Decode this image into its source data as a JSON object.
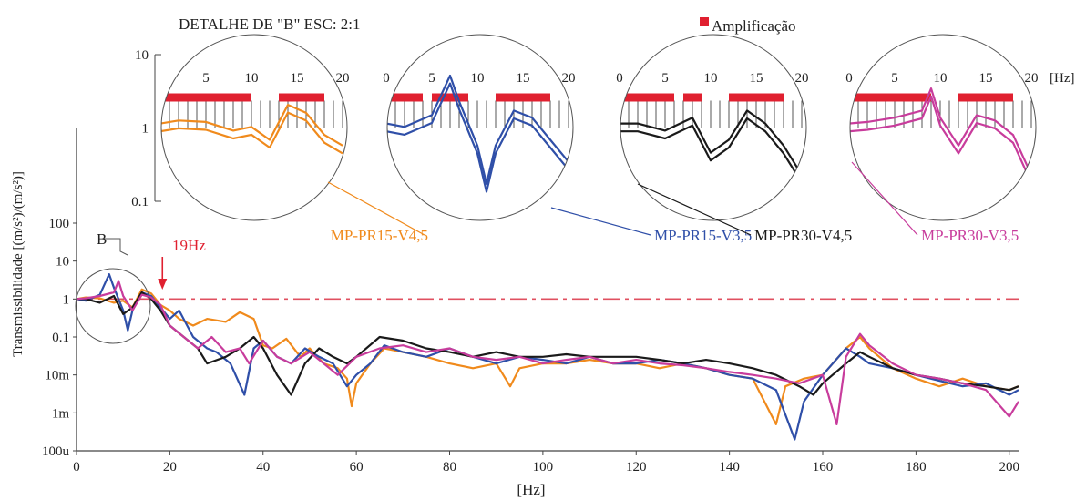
{
  "chart_data": {
    "type": "line",
    "detail_title": "DETALHE DE \"B\"  ESC: 2:1",
    "legend_amplification": "Amplificação",
    "xlabel": "[Hz]",
    "ylabel": "Transmissibilidade [(m/s²)/(m/s²)]",
    "xlim": [
      0,
      202
    ],
    "x_ticks": [
      0,
      20,
      40,
      60,
      80,
      100,
      120,
      140,
      160,
      180,
      200
    ],
    "y_tick_labels": [
      "100u",
      "1m",
      "10m",
      "0.1",
      "1",
      "10",
      "100"
    ],
    "y_tick_values": [
      0.0001,
      0.001,
      0.01,
      0.1,
      1,
      10,
      100
    ],
    "y_scale": "log",
    "reference_line": 1,
    "marker_b": "B",
    "marker_19hz": "19Hz",
    "inset_x_ticks": [
      "5",
      "10",
      "15",
      "20"
    ],
    "inset_x_ticks_full": [
      "0",
      "5",
      "10",
      "15",
      "20"
    ],
    "inset_x_unit": "[Hz]",
    "inset_y_tick_labels": [
      "10",
      "1",
      "0.1"
    ],
    "series": [
      {
        "name": "MP-PR15-V4,5",
        "color": "#f08a1c",
        "points": [
          [
            0,
            1
          ],
          [
            2,
            1.1
          ],
          [
            5,
            1.05
          ],
          [
            8,
            0.8
          ],
          [
            10,
            0.9
          ],
          [
            12,
            0.6
          ],
          [
            14,
            1.8
          ],
          [
            16,
            1.4
          ],
          [
            18,
            0.7
          ],
          [
            20,
            0.5
          ],
          [
            22,
            0.3
          ],
          [
            25,
            0.2
          ],
          [
            28,
            0.3
          ],
          [
            32,
            0.25
          ],
          [
            35,
            0.45
          ],
          [
            38,
            0.3
          ],
          [
            40,
            0.06
          ],
          [
            42,
            0.05
          ],
          [
            45,
            0.09
          ],
          [
            48,
            0.03
          ],
          [
            50,
            0.05
          ],
          [
            53,
            0.02
          ],
          [
            56,
            0.015
          ],
          [
            58,
            0.008
          ],
          [
            59,
            0.0015
          ],
          [
            60,
            0.006
          ],
          [
            63,
            0.02
          ],
          [
            66,
            0.05
          ],
          [
            70,
            0.04
          ],
          [
            75,
            0.03
          ],
          [
            80,
            0.02
          ],
          [
            85,
            0.015
          ],
          [
            90,
            0.02
          ],
          [
            93,
            0.005
          ],
          [
            95,
            0.015
          ],
          [
            100,
            0.02
          ],
          [
            105,
            0.02
          ],
          [
            110,
            0.025
          ],
          [
            115,
            0.02
          ],
          [
            120,
            0.02
          ],
          [
            125,
            0.015
          ],
          [
            130,
            0.02
          ],
          [
            135,
            0.015
          ],
          [
            140,
            0.01
          ],
          [
            145,
            0.008
          ],
          [
            150,
            0.0005
          ],
          [
            152,
            0.005
          ],
          [
            156,
            0.008
          ],
          [
            160,
            0.01
          ],
          [
            165,
            0.05
          ],
          [
            168,
            0.1
          ],
          [
            170,
            0.05
          ],
          [
            175,
            0.015
          ],
          [
            180,
            0.008
          ],
          [
            185,
            0.005
          ],
          [
            190,
            0.008
          ],
          [
            195,
            0.005
          ],
          [
            200,
            0.004
          ],
          [
            202,
            0.005
          ]
        ]
      },
      {
        "name": "MP-PR15-V3,5",
        "color": "#2f4fa8",
        "points": [
          [
            0,
            1
          ],
          [
            2,
            0.9
          ],
          [
            5,
            1.3
          ],
          [
            7,
            4.5
          ],
          [
            8,
            2
          ],
          [
            10,
            0.5
          ],
          [
            11,
            0.15
          ],
          [
            12,
            0.5
          ],
          [
            14,
            1.5
          ],
          [
            16,
            1.2
          ],
          [
            18,
            0.6
          ],
          [
            20,
            0.3
          ],
          [
            22,
            0.5
          ],
          [
            25,
            0.1
          ],
          [
            28,
            0.05
          ],
          [
            30,
            0.04
          ],
          [
            33,
            0.02
          ],
          [
            36,
            0.003
          ],
          [
            38,
            0.05
          ],
          [
            40,
            0.08
          ],
          [
            43,
            0.03
          ],
          [
            46,
            0.02
          ],
          [
            49,
            0.05
          ],
          [
            52,
            0.03
          ],
          [
            55,
            0.02
          ],
          [
            58,
            0.005
          ],
          [
            60,
            0.01
          ],
          [
            63,
            0.02
          ],
          [
            66,
            0.06
          ],
          [
            70,
            0.04
          ],
          [
            75,
            0.03
          ],
          [
            80,
            0.05
          ],
          [
            85,
            0.03
          ],
          [
            90,
            0.02
          ],
          [
            95,
            0.03
          ],
          [
            100,
            0.025
          ],
          [
            105,
            0.02
          ],
          [
            110,
            0.03
          ],
          [
            115,
            0.02
          ],
          [
            120,
            0.02
          ],
          [
            125,
            0.025
          ],
          [
            130,
            0.02
          ],
          [
            135,
            0.015
          ],
          [
            140,
            0.01
          ],
          [
            145,
            0.008
          ],
          [
            150,
            0.004
          ],
          [
            154,
            0.0002
          ],
          [
            156,
            0.002
          ],
          [
            160,
            0.01
          ],
          [
            165,
            0.05
          ],
          [
            168,
            0.03
          ],
          [
            170,
            0.02
          ],
          [
            175,
            0.015
          ],
          [
            180,
            0.01
          ],
          [
            185,
            0.007
          ],
          [
            190,
            0.005
          ],
          [
            195,
            0.006
          ],
          [
            200,
            0.003
          ],
          [
            202,
            0.004
          ]
        ]
      },
      {
        "name": "MP-PR30-V4,5",
        "color": "#1a1a1a",
        "points": [
          [
            0,
            1
          ],
          [
            2,
            1
          ],
          [
            5,
            0.8
          ],
          [
            8,
            1.2
          ],
          [
            10,
            0.4
          ],
          [
            12,
            0.6
          ],
          [
            14,
            1.5
          ],
          [
            16,
            1
          ],
          [
            18,
            0.5
          ],
          [
            20,
            0.2
          ],
          [
            23,
            0.1
          ],
          [
            26,
            0.05
          ],
          [
            28,
            0.02
          ],
          [
            32,
            0.03
          ],
          [
            35,
            0.05
          ],
          [
            38,
            0.1
          ],
          [
            40,
            0.05
          ],
          [
            43,
            0.01
          ],
          [
            46,
            0.003
          ],
          [
            49,
            0.02
          ],
          [
            52,
            0.05
          ],
          [
            55,
            0.03
          ],
          [
            58,
            0.02
          ],
          [
            60,
            0.03
          ],
          [
            65,
            0.1
          ],
          [
            70,
            0.08
          ],
          [
            75,
            0.05
          ],
          [
            80,
            0.04
          ],
          [
            85,
            0.03
          ],
          [
            90,
            0.04
          ],
          [
            95,
            0.03
          ],
          [
            100,
            0.03
          ],
          [
            105,
            0.035
          ],
          [
            110,
            0.03
          ],
          [
            115,
            0.03
          ],
          [
            120,
            0.03
          ],
          [
            125,
            0.025
          ],
          [
            130,
            0.02
          ],
          [
            135,
            0.025
          ],
          [
            140,
            0.02
          ],
          [
            145,
            0.015
          ],
          [
            150,
            0.01
          ],
          [
            155,
            0.005
          ],
          [
            158,
            0.003
          ],
          [
            160,
            0.006
          ],
          [
            165,
            0.02
          ],
          [
            168,
            0.04
          ],
          [
            170,
            0.03
          ],
          [
            175,
            0.015
          ],
          [
            180,
            0.01
          ],
          [
            185,
            0.008
          ],
          [
            190,
            0.006
          ],
          [
            195,
            0.005
          ],
          [
            200,
            0.004
          ],
          [
            202,
            0.005
          ]
        ]
      },
      {
        "name": "MP-PR30-V3,5",
        "color": "#c83c9c",
        "points": [
          [
            0,
            1
          ],
          [
            2,
            1.05
          ],
          [
            5,
            1.2
          ],
          [
            8,
            1.5
          ],
          [
            9,
            3
          ],
          [
            10,
            1.2
          ],
          [
            12,
            0.5
          ],
          [
            14,
            1.3
          ],
          [
            16,
            1.1
          ],
          [
            18,
            0.7
          ],
          [
            20,
            0.2
          ],
          [
            23,
            0.1
          ],
          [
            26,
            0.05
          ],
          [
            29,
            0.1
          ],
          [
            32,
            0.04
          ],
          [
            35,
            0.05
          ],
          [
            37,
            0.02
          ],
          [
            40,
            0.08
          ],
          [
            43,
            0.03
          ],
          [
            46,
            0.02
          ],
          [
            50,
            0.04
          ],
          [
            53,
            0.02
          ],
          [
            56,
            0.01
          ],
          [
            60,
            0.03
          ],
          [
            65,
            0.05
          ],
          [
            70,
            0.06
          ],
          [
            75,
            0.04
          ],
          [
            80,
            0.05
          ],
          [
            85,
            0.03
          ],
          [
            90,
            0.025
          ],
          [
            95,
            0.03
          ],
          [
            100,
            0.02
          ],
          [
            105,
            0.025
          ],
          [
            110,
            0.03
          ],
          [
            115,
            0.02
          ],
          [
            120,
            0.025
          ],
          [
            125,
            0.02
          ],
          [
            130,
            0.018
          ],
          [
            135,
            0.015
          ],
          [
            140,
            0.012
          ],
          [
            145,
            0.01
          ],
          [
            150,
            0.008
          ],
          [
            155,
            0.006
          ],
          [
            160,
            0.01
          ],
          [
            163,
            0.0005
          ],
          [
            165,
            0.03
          ],
          [
            168,
            0.12
          ],
          [
            170,
            0.06
          ],
          [
            175,
            0.02
          ],
          [
            180,
            0.01
          ],
          [
            185,
            0.008
          ],
          [
            190,
            0.006
          ],
          [
            195,
            0.004
          ],
          [
            200,
            0.0008
          ],
          [
            202,
            0.002
          ]
        ]
      }
    ],
    "bands": [
      {
        "from": 0,
        "to": 11
      },
      {
        "from": 13,
        "to": 18
      }
    ]
  }
}
